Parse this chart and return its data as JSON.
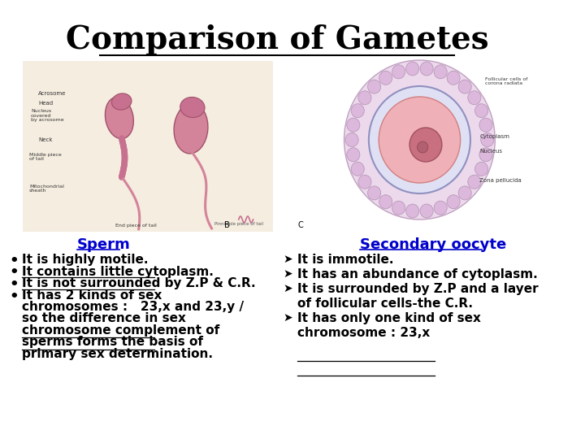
{
  "title": "Comparison of Gametes",
  "title_fontsize": 28,
  "background_color": "#ffffff",
  "sperm_label": "Sperm",
  "oocyte_label": "Secondary oocyte",
  "label_color": "#0000cc",
  "label_fontsize": 13,
  "sperm_bullets": [
    "It is highly motile.",
    "It contains little cytoplasm.",
    "It is not surrounded by Z.P & C.R.",
    "It has 2 kinds of sex\nchromosomes :   23,x and 23,y /\nso the difference in sex\nchromosome complement of\nsperms forms the basis of\nprimary sex determination."
  ],
  "oocyte_bullets": [
    "It is immotile.",
    "It has an abundance of cytoplasm.",
    "It is surrounded by Z.P and a layer\nof follicular cells-the C.R.",
    "It has only one kind of sex\nchromosome : 23,x"
  ],
  "bullet_fontsize": 11,
  "text_color": "#000000"
}
